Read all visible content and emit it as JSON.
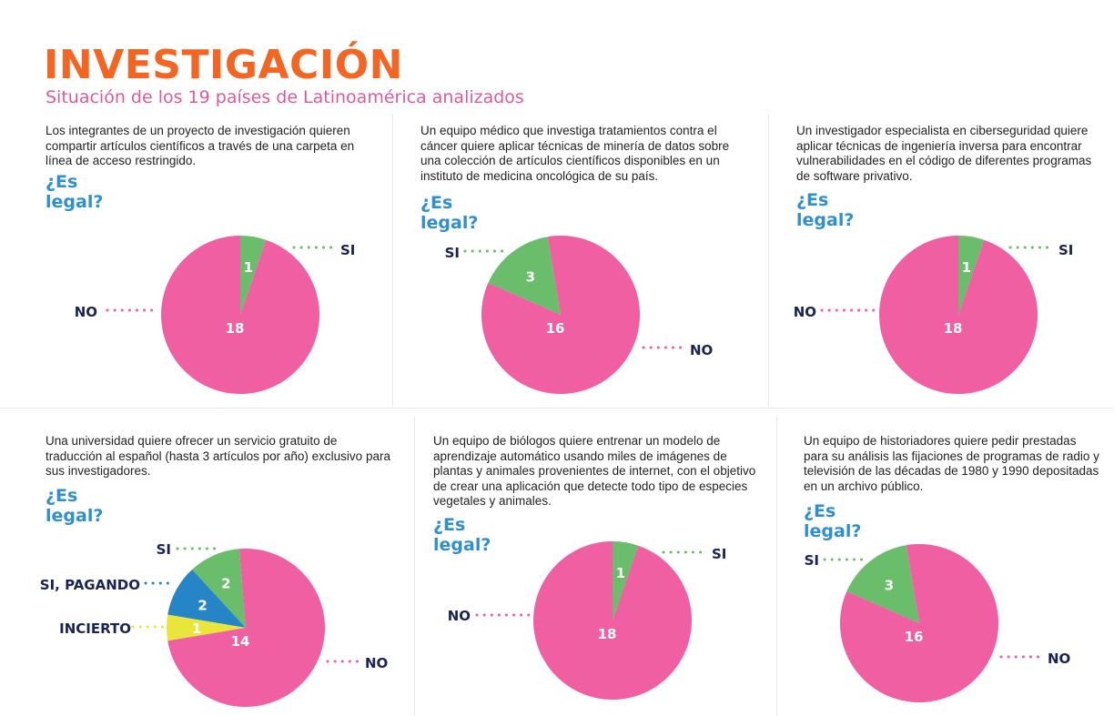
{
  "header": {
    "title": "INVESTIGACIÓN",
    "subtitle": "Situación de los 19 países de Latinoamérica analizados"
  },
  "colors": {
    "title": "#f26522",
    "subtitle": "#e05a9a",
    "question_heading": "#2f8fcf",
    "SI": "#6abd6a",
    "NO": "#ef5fa2",
    "SI, PAGANDO": "#2585c7",
    "INCIERTO": "#e9e53a",
    "label": "#1b2254"
  },
  "chart_data": [
    {
      "type": "pie",
      "question": "Los integrantes de un proyecto de investigación quieren compartir artículos científicos a través de una carpeta en línea de acceso restringido.",
      "heading": "¿Es legal?",
      "slices": [
        {
          "label": "SI",
          "value": 1
        },
        {
          "label": "NO",
          "value": 18
        }
      ]
    },
    {
      "type": "pie",
      "question": "Un equipo médico que investiga tratamientos contra el cáncer quiere aplicar técnicas de minería de datos sobre una colección de artículos científicos disponibles en un instituto de medicina oncológica de su país.",
      "heading": "¿Es legal?",
      "slices": [
        {
          "label": "SI",
          "value": 3
        },
        {
          "label": "NO",
          "value": 16
        }
      ]
    },
    {
      "type": "pie",
      "question": "Un investigador especialista en ciberseguridad quiere aplicar técnicas de ingeniería inversa para encontrar vulnerabilidades en el código de diferentes programas de software privativo.",
      "heading": "¿Es legal?",
      "slices": [
        {
          "label": "SI",
          "value": 1
        },
        {
          "label": "NO",
          "value": 18
        }
      ]
    },
    {
      "type": "pie",
      "question": "Una universidad quiere ofrecer un servicio gratuito de traducción al español (hasta 3 artículos por año) exclusivo para sus investigadores.",
      "heading": "¿Es legal?",
      "slices": [
        {
          "label": "SI",
          "value": 2
        },
        {
          "label": "SI, PAGANDO",
          "value": 2
        },
        {
          "label": "INCIERTO",
          "value": 1
        },
        {
          "label": "NO",
          "value": 14
        }
      ]
    },
    {
      "type": "pie",
      "question": "Un equipo de biólogos quiere entrenar un modelo de aprendizaje automático usando miles de imágenes de plantas y animales provenientes de internet, con el objetivo de crear una aplicación que detecte todo tipo de especies vegetales y animales.",
      "heading": "¿Es legal?",
      "slices": [
        {
          "label": "SI",
          "value": 1
        },
        {
          "label": "NO",
          "value": 18
        }
      ]
    },
    {
      "type": "pie",
      "question": "Un equipo de historiadores quiere pedir prestadas para su análisis las fijaciones de programas de radio y televisión de las décadas de 1980 y 1990 depositadas en un archivo público.",
      "heading": "¿Es legal?",
      "slices": [
        {
          "label": "SI",
          "value": 3
        },
        {
          "label": "NO",
          "value": 16
        }
      ]
    }
  ]
}
